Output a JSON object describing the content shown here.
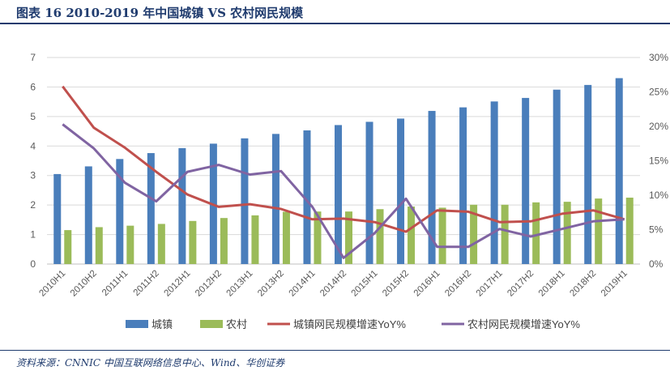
{
  "header": {
    "title": "图表 16   2010-2019 年中国城镇 VS 农村网民规模"
  },
  "footer": {
    "source": "资料来源：CNNIC 中国互联网络信息中心、Wind、华创证券"
  },
  "chart_data": {
    "type": "bar+line",
    "categories": [
      "2010H1",
      "2010H2",
      "2011H1",
      "2011H2",
      "2012H1",
      "2012H2",
      "2013H1",
      "2013H2",
      "2014H1",
      "2014H2",
      "2015H1",
      "2015H2",
      "2016H1",
      "2016H2",
      "2017H1",
      "2017H2",
      "2018H1",
      "2018H2",
      "2019H1"
    ],
    "bar_series": [
      {
        "name": "城镇",
        "color": "#4a7ebb",
        "values": [
          3.05,
          3.31,
          3.56,
          3.76,
          3.93,
          4.08,
          4.26,
          4.41,
          4.53,
          4.71,
          4.82,
          4.93,
          5.19,
          5.31,
          5.51,
          5.63,
          5.91,
          6.07,
          6.3
        ]
      },
      {
        "name": "农村",
        "color": "#9bbb59",
        "values": [
          1.15,
          1.25,
          1.3,
          1.36,
          1.46,
          1.56,
          1.65,
          1.77,
          1.78,
          1.78,
          1.86,
          1.95,
          1.91,
          2.01,
          2.01,
          2.09,
          2.11,
          2.22,
          2.25
        ]
      }
    ],
    "line_series": [
      {
        "name": "城镇网民规模增速YoY%",
        "color": "#c0504d",
        "values": [
          25.8,
          19.8,
          16.9,
          13.4,
          10.1,
          8.3,
          8.7,
          8.0,
          6.5,
          6.6,
          6.1,
          4.7,
          7.8,
          7.6,
          6.1,
          6.2,
          7.3,
          7.8,
          6.5
        ]
      },
      {
        "name": "农村网民规模增速YoY%",
        "color": "#8064a2",
        "values": [
          20.3,
          16.8,
          11.8,
          9.1,
          13.4,
          14.4,
          13.0,
          13.5,
          8.3,
          0.9,
          4.5,
          9.5,
          2.5,
          2.5,
          5.1,
          4.0,
          5.1,
          6.2,
          6.5
        ]
      }
    ],
    "y_left": {
      "min": 0,
      "max": 7,
      "ticks": [
        "0",
        "1",
        "2",
        "3",
        "4",
        "5",
        "6",
        "7"
      ]
    },
    "y_right": {
      "min": 0,
      "max": 30,
      "ticks": [
        "0%",
        "5%",
        "10%",
        "15%",
        "20%",
        "25%",
        "30%"
      ]
    },
    "grid": true,
    "legend_position": "bottom"
  }
}
